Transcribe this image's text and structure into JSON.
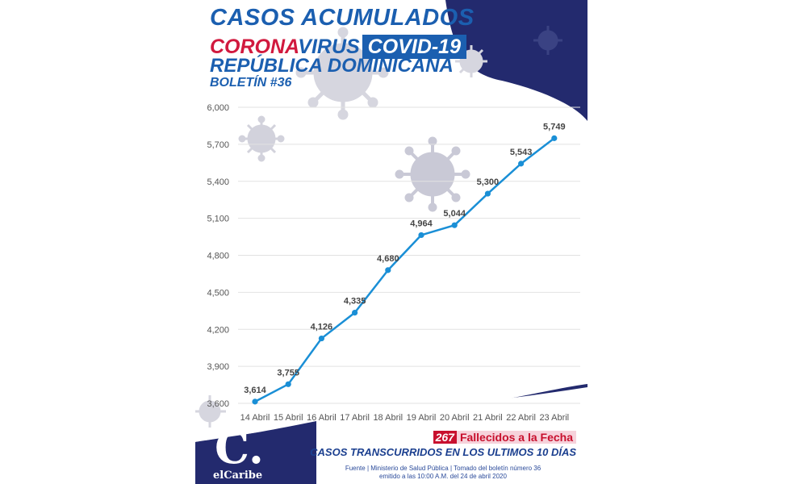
{
  "header": {
    "title_line1": "CASOS ACUMULADOS",
    "title_corona": "CORONA",
    "title_virus": "VIRUS",
    "title_covid": "COVID-19",
    "title_country": "REPÚBLICA DOMINICANA",
    "bulletin": "BOLETÍN #36"
  },
  "colors": {
    "brand_blue": "#1b5fb0",
    "navy": "#232a6e",
    "line": "#1a8fd6",
    "red": "#c8102e"
  },
  "chart_data": {
    "type": "line",
    "title": "CASOS ACUMULADOS",
    "categories": [
      "14 Abril",
      "15 Abril",
      "16 Abril",
      "17 Abril",
      "18 Abril",
      "19 Abril",
      "20 Abril",
      "21 Abril",
      "22 Abril",
      "23 Abril"
    ],
    "values": [
      3614,
      3755,
      4126,
      4335,
      4680,
      4964,
      5044,
      5300,
      5543,
      5749
    ],
    "value_labels": [
      "3,614",
      "3,755",
      "4,126",
      "4,335",
      "4,680",
      "4,964",
      "5,044",
      "5,300",
      "5,543",
      "5,749"
    ],
    "ylim": [
      3600,
      6000
    ],
    "yticks": [
      3600,
      3900,
      4200,
      4500,
      4800,
      5100,
      5400,
      5700,
      6000
    ],
    "ytick_labels": [
      "3,600",
      "3,900",
      "4,200",
      "4,500",
      "4,800",
      "5,100",
      "5,400",
      "5,700",
      "6,000"
    ],
    "grid": true,
    "xlabel": "",
    "ylabel": ""
  },
  "footer": {
    "deaths_count": "267",
    "deaths_label": "Fallecidos a la Fecha",
    "subtitle": "CASOS TRANSCURRIDOS EN LOS ULTIMOS 10 DÍAS",
    "source_line1": "Fuente | Ministerio de Salud Pública | Tomado del boletín número 36",
    "source_line2": "emitido a las 10:00 A.M. del 24 de abril 2020"
  },
  "logo": {
    "letter": "C.",
    "name": "elCaribe"
  }
}
